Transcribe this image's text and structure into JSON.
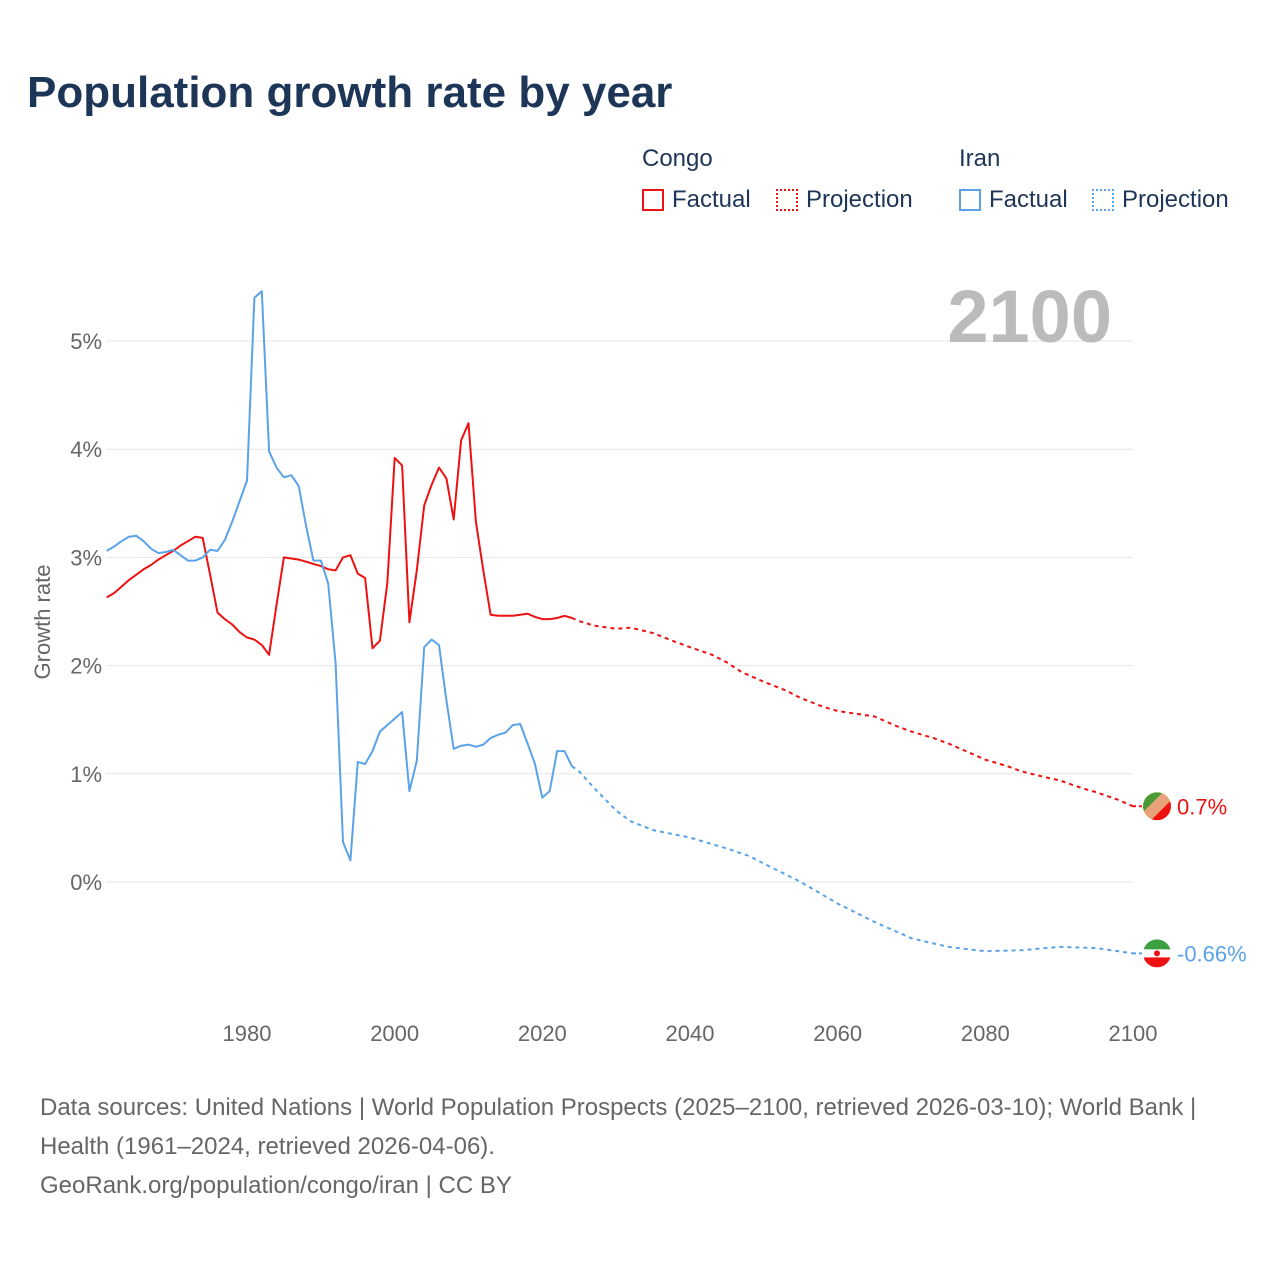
{
  "chart_data": {
    "type": "line",
    "title": "Population growth rate by year",
    "ylabel": "Growth rate",
    "xlabel": "",
    "xlim": [
      1961,
      2100
    ],
    "ylim": [
      -0.9,
      5.5
    ],
    "x_ticks": [
      1980,
      2000,
      2020,
      2040,
      2060,
      2080,
      2100
    ],
    "x_tick_labels": [
      "1980",
      "2000",
      "2020",
      "2040",
      "2060",
      "2080",
      "2100"
    ],
    "y_ticks": [
      0,
      1,
      2,
      3,
      4,
      5
    ],
    "y_tick_labels": [
      "0%",
      "1%",
      "2%",
      "3%",
      "4%",
      "5%"
    ],
    "grid": true,
    "year_watermark": "2100",
    "legend": {
      "placement": "top-right",
      "groups": [
        {
          "name": "Congo",
          "items": [
            "Factual",
            "Projection"
          ]
        },
        {
          "name": "Iran",
          "items": [
            "Factual",
            "Projection"
          ]
        }
      ]
    },
    "series": [
      {
        "name": "Congo",
        "kind": "factual",
        "color": "#ee1111",
        "x": [
          1961,
          1962,
          1963,
          1964,
          1965,
          1966,
          1967,
          1968,
          1969,
          1970,
          1971,
          1972,
          1973,
          1974,
          1975,
          1976,
          1977,
          1978,
          1979,
          1980,
          1981,
          1982,
          1983,
          1984,
          1985,
          1986,
          1987,
          1988,
          1989,
          1990,
          1991,
          1992,
          1993,
          1994,
          1995,
          1996,
          1997,
          1998,
          1999,
          2000,
          2001,
          2002,
          2003,
          2004,
          2005,
          2006,
          2007,
          2008,
          2009,
          2010,
          2011,
          2012,
          2013,
          2014,
          2015,
          2016,
          2017,
          2018,
          2019,
          2020,
          2021,
          2022,
          2023,
          2024
        ],
        "y": [
          2.63,
          2.67,
          2.73,
          2.79,
          2.84,
          2.89,
          2.93,
          2.98,
          3.02,
          3.06,
          3.11,
          3.15,
          3.19,
          3.18,
          2.84,
          2.49,
          2.43,
          2.38,
          2.31,
          2.26,
          2.24,
          2.19,
          2.1,
          2.56,
          3.0,
          2.99,
          2.98,
          2.96,
          2.94,
          2.92,
          2.89,
          2.88,
          3.0,
          3.02,
          2.85,
          2.81,
          2.16,
          2.23,
          2.76,
          3.92,
          3.85,
          2.4,
          2.88,
          3.48,
          3.67,
          3.83,
          3.73,
          3.35,
          4.08,
          4.24,
          3.33,
          2.88,
          2.47,
          2.46,
          2.46,
          2.46,
          2.47,
          2.48,
          2.45,
          2.43,
          2.43,
          2.44,
          2.46,
          2.44
        ]
      },
      {
        "name": "Congo",
        "kind": "projection",
        "color": "#ee1111",
        "x": [
          2024,
          2025,
          2027,
          2030,
          2032,
          2035,
          2038,
          2040,
          2043,
          2045,
          2047,
          2050,
          2053,
          2055,
          2058,
          2060,
          2063,
          2065,
          2068,
          2070,
          2073,
          2075,
          2078,
          2080,
          2083,
          2085,
          2088,
          2090,
          2093,
          2095,
          2098,
          2100
        ],
        "y": [
          2.44,
          2.41,
          2.37,
          2.34,
          2.35,
          2.3,
          2.22,
          2.17,
          2.1,
          2.03,
          1.94,
          1.85,
          1.77,
          1.7,
          1.62,
          1.58,
          1.55,
          1.53,
          1.44,
          1.39,
          1.33,
          1.28,
          1.19,
          1.13,
          1.07,
          1.02,
          0.97,
          0.94,
          0.87,
          0.83,
          0.76,
          0.7
        ]
      },
      {
        "name": "Iran",
        "kind": "factual",
        "color": "#5aa3e8",
        "x": [
          1961,
          1962,
          1963,
          1964,
          1965,
          1966,
          1967,
          1968,
          1969,
          1970,
          1971,
          1972,
          1973,
          1974,
          1975,
          1976,
          1977,
          1978,
          1979,
          1980,
          1981,
          1982,
          1983,
          1984,
          1985,
          1986,
          1987,
          1988,
          1989,
          1990,
          1991,
          1992,
          1993,
          1994,
          1995,
          1996,
          1997,
          1998,
          1999,
          2000,
          2001,
          2002,
          2003,
          2004,
          2005,
          2006,
          2007,
          2008,
          2009,
          2010,
          2011,
          2012,
          2013,
          2014,
          2015,
          2016,
          2017,
          2018,
          2019,
          2020,
          2021,
          2022,
          2023,
          2024
        ],
        "y": [
          3.06,
          3.1,
          3.15,
          3.19,
          3.2,
          3.15,
          3.08,
          3.04,
          3.05,
          3.07,
          3.02,
          2.97,
          2.97,
          3.0,
          3.07,
          3.06,
          3.16,
          3.33,
          3.52,
          3.71,
          5.4,
          5.46,
          3.98,
          3.83,
          3.74,
          3.76,
          3.66,
          3.29,
          2.97,
          2.97,
          2.76,
          2.02,
          0.37,
          0.2,
          1.11,
          1.09,
          1.21,
          1.39,
          1.45,
          1.51,
          1.57,
          0.84,
          1.12,
          2.17,
          2.24,
          2.19,
          1.68,
          1.23,
          1.26,
          1.27,
          1.25,
          1.27,
          1.33,
          1.36,
          1.38,
          1.45,
          1.46,
          1.28,
          1.09,
          0.78,
          0.84,
          1.21,
          1.21,
          1.07
        ]
      },
      {
        "name": "Iran",
        "kind": "projection",
        "color": "#5aa3e8",
        "x": [
          2024,
          2025,
          2027,
          2030,
          2032,
          2035,
          2040,
          2045,
          2048,
          2050,
          2055,
          2060,
          2065,
          2070,
          2075,
          2080,
          2085,
          2090,
          2095,
          2100
        ],
        "y": [
          1.07,
          1.02,
          0.87,
          0.66,
          0.56,
          0.48,
          0.41,
          0.31,
          0.24,
          0.17,
          0.0,
          -0.2,
          -0.37,
          -0.52,
          -0.6,
          -0.64,
          -0.63,
          -0.6,
          -0.61,
          -0.66
        ]
      }
    ],
    "end_labels": [
      {
        "country": "Congo",
        "text": "0.7%",
        "value": 0.7,
        "color": "#ee1111"
      },
      {
        "country": "Iran",
        "text": "-0.66%",
        "value": -0.66,
        "color": "#5aa3e8"
      }
    ]
  },
  "footer": {
    "sources": "Data sources: United Nations | World Population Prospects (2025–2100, retrieved 2026-03-10); World Bank | Health (1961–2024, retrieved 2026-04-06).",
    "credit": "GeoRank.org/population/congo/iran | CC BY"
  }
}
